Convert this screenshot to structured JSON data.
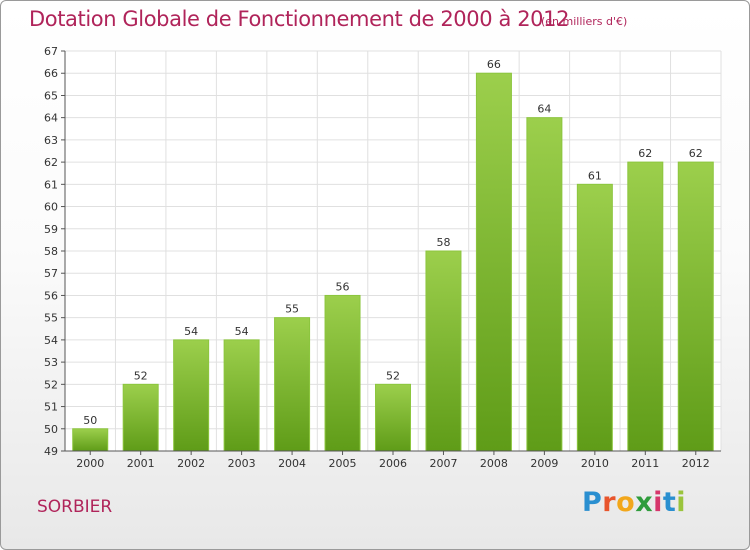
{
  "header": {
    "title": "Dotation Globale de Fonctionnement de 2000 à 2012",
    "unit": "(en milliers d'€)"
  },
  "footer": {
    "place": "SORBIER",
    "logo_letters": [
      "P",
      "r",
      "o",
      "x",
      "i",
      "t",
      "i"
    ],
    "logo_colors": [
      "#2a8fd0",
      "#e8552c",
      "#f2a71b",
      "#2f9c3c",
      "#d6366b",
      "#2a8fd0",
      "#9ac43c"
    ]
  },
  "chart_data": {
    "type": "bar",
    "categories": [
      "2000",
      "2001",
      "2002",
      "2003",
      "2004",
      "2005",
      "2006",
      "2007",
      "2008",
      "2009",
      "2010",
      "2011",
      "2012"
    ],
    "values": [
      50,
      52,
      54,
      54,
      55,
      56,
      52,
      58,
      66,
      64,
      61,
      62,
      62
    ],
    "data_labels": [
      "50",
      "52",
      "54",
      "54",
      "55",
      "56",
      "52",
      "58",
      "66",
      "64",
      "61",
      "62",
      "62"
    ],
    "ylim": [
      49,
      67
    ],
    "yticks": [
      "49",
      "50",
      "51",
      "52",
      "53",
      "54",
      "55",
      "56",
      "57",
      "58",
      "59",
      "60",
      "61",
      "62",
      "63",
      "64",
      "65",
      "66",
      "67"
    ],
    "grid": true,
    "colors": {
      "bar_top": "#9ccf4c",
      "bar_bottom": "#5f9c18",
      "bar_edge": "#8cc63e",
      "grid": "#e0e0e0",
      "axis": "#555555"
    }
  }
}
